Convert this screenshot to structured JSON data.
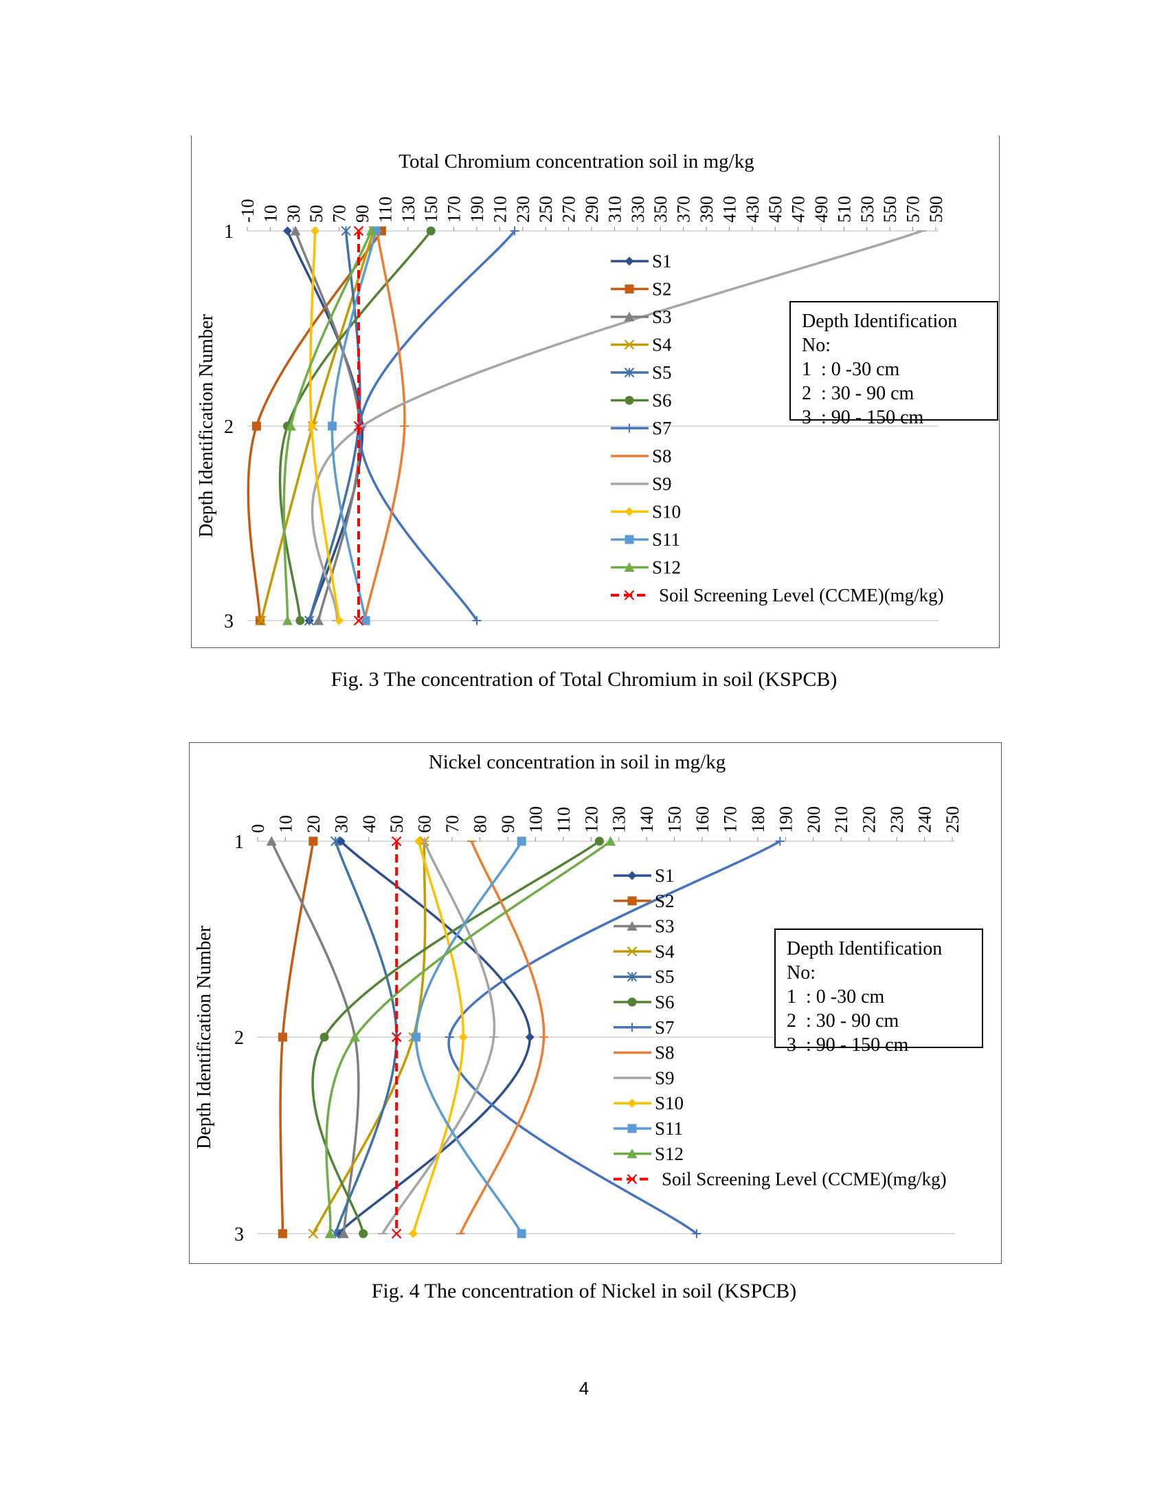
{
  "page_number": "4",
  "depth_legend_title": "Depth Identification",
  "depth_legend_no": "No:",
  "depth_legend_items": [
    "1  : 0 -30 cm",
    "2  : 30 - 90 cm",
    "3  : 90 - 150 cm"
  ],
  "series_names": [
    "S1",
    "S2",
    "S3",
    "S4",
    "S5",
    "S6",
    "S7",
    "S8",
    "S9",
    "S10",
    "S11",
    "S12"
  ],
  "series_colors": [
    "#2E4F8F",
    "#C55A11",
    "#7F7F7F",
    "#C49A00",
    "#3F72A8",
    "#548235",
    "#4472C4",
    "#ED7D31",
    "#A5A5A5",
    "#FFC000",
    "#5B9BD5",
    "#70AD47"
  ],
  "ccme_label": "Soil Screening Level (CCME)(mg/kg)",
  "ccme_color": "#FF0000",
  "chart_data": [
    {
      "type": "line",
      "orientation": "depth-profile",
      "title": "Total Chromium concentration soil in mg/kg",
      "caption": "Fig. 3 The concentration of Total Chromium in soil (KSPCB)",
      "ylabel": "Depth Identification Number",
      "y": [
        1,
        2,
        3
      ],
      "xlim": [
        -10,
        590
      ],
      "x_ticks": [
        -10,
        10,
        30,
        50,
        70,
        90,
        110,
        130,
        150,
        170,
        190,
        210,
        230,
        250,
        270,
        290,
        310,
        330,
        350,
        370,
        390,
        410,
        430,
        450,
        470,
        490,
        510,
        530,
        550,
        570,
        590
      ],
      "ccme": [
        87,
        87,
        87
      ],
      "series": [
        {
          "name": "S1",
          "values": [
            25,
            90,
            44
          ],
          "marker": "diamond"
        },
        {
          "name": "S2",
          "values": [
            107,
            -2,
            1
          ],
          "marker": "square"
        },
        {
          "name": "S3",
          "values": [
            32,
            88,
            52
          ],
          "marker": "triangle"
        },
        {
          "name": "S4",
          "values": [
            100,
            47,
            2
          ],
          "marker": "x"
        },
        {
          "name": "S5",
          "values": [
            76,
            87,
            44
          ],
          "marker": "asterisk"
        },
        {
          "name": "S6",
          "values": [
            150,
            25,
            36
          ],
          "marker": "circle"
        },
        {
          "name": "S7",
          "values": [
            223,
            88,
            190
          ],
          "marker": "plus"
        },
        {
          "name": "S8",
          "values": [
            103,
            127,
            92
          ],
          "marker": "dash"
        },
        {
          "name": "S9",
          "values": [
            578,
            90,
            68
          ],
          "marker": "dash"
        },
        {
          "name": "S10",
          "values": [
            49,
            46,
            70
          ],
          "marker": "diamond"
        },
        {
          "name": "S11",
          "values": [
            102,
            64,
            93
          ],
          "marker": "square"
        },
        {
          "name": "S12",
          "values": [
            98,
            28,
            25
          ],
          "marker": "triangle"
        }
      ]
    },
    {
      "type": "line",
      "orientation": "depth-profile",
      "title": "Nickel concentration in soil in mg/kg",
      "caption": "Fig. 4 The concentration of Nickel in soil (KSPCB)",
      "ylabel": "Depth Identification Number",
      "y": [
        1,
        2,
        3
      ],
      "xlim": [
        0,
        250
      ],
      "x_ticks": [
        0,
        10,
        20,
        30,
        40,
        50,
        60,
        70,
        80,
        90,
        100,
        110,
        120,
        130,
        140,
        150,
        160,
        170,
        180,
        190,
        200,
        210,
        220,
        230,
        240,
        250
      ],
      "ccme": [
        50,
        50,
        50
      ],
      "series": [
        {
          "name": "S1",
          "values": [
            30,
            98,
            29
          ],
          "marker": "diamond"
        },
        {
          "name": "S2",
          "values": [
            20,
            9,
            9
          ],
          "marker": "square"
        },
        {
          "name": "S3",
          "values": [
            5,
            35,
            31
          ],
          "marker": "triangle"
        },
        {
          "name": "S4",
          "values": [
            60,
            56,
            20
          ],
          "marker": "x"
        },
        {
          "name": "S5",
          "values": [
            28,
            50,
            28
          ],
          "marker": "asterisk"
        },
        {
          "name": "S6",
          "values": [
            123,
            24,
            38
          ],
          "marker": "circle"
        },
        {
          "name": "S7",
          "values": [
            188,
            69,
            158
          ],
          "marker": "plus"
        },
        {
          "name": "S8",
          "values": [
            77,
            103,
            73
          ],
          "marker": "dash"
        },
        {
          "name": "S9",
          "values": [
            60,
            85,
            45
          ],
          "marker": "dash"
        },
        {
          "name": "S10",
          "values": [
            58,
            74,
            56
          ],
          "marker": "diamond"
        },
        {
          "name": "S11",
          "values": [
            95,
            57,
            95
          ],
          "marker": "square"
        },
        {
          "name": "S12",
          "values": [
            127,
            35,
            26
          ],
          "marker": "triangle"
        }
      ]
    }
  ]
}
